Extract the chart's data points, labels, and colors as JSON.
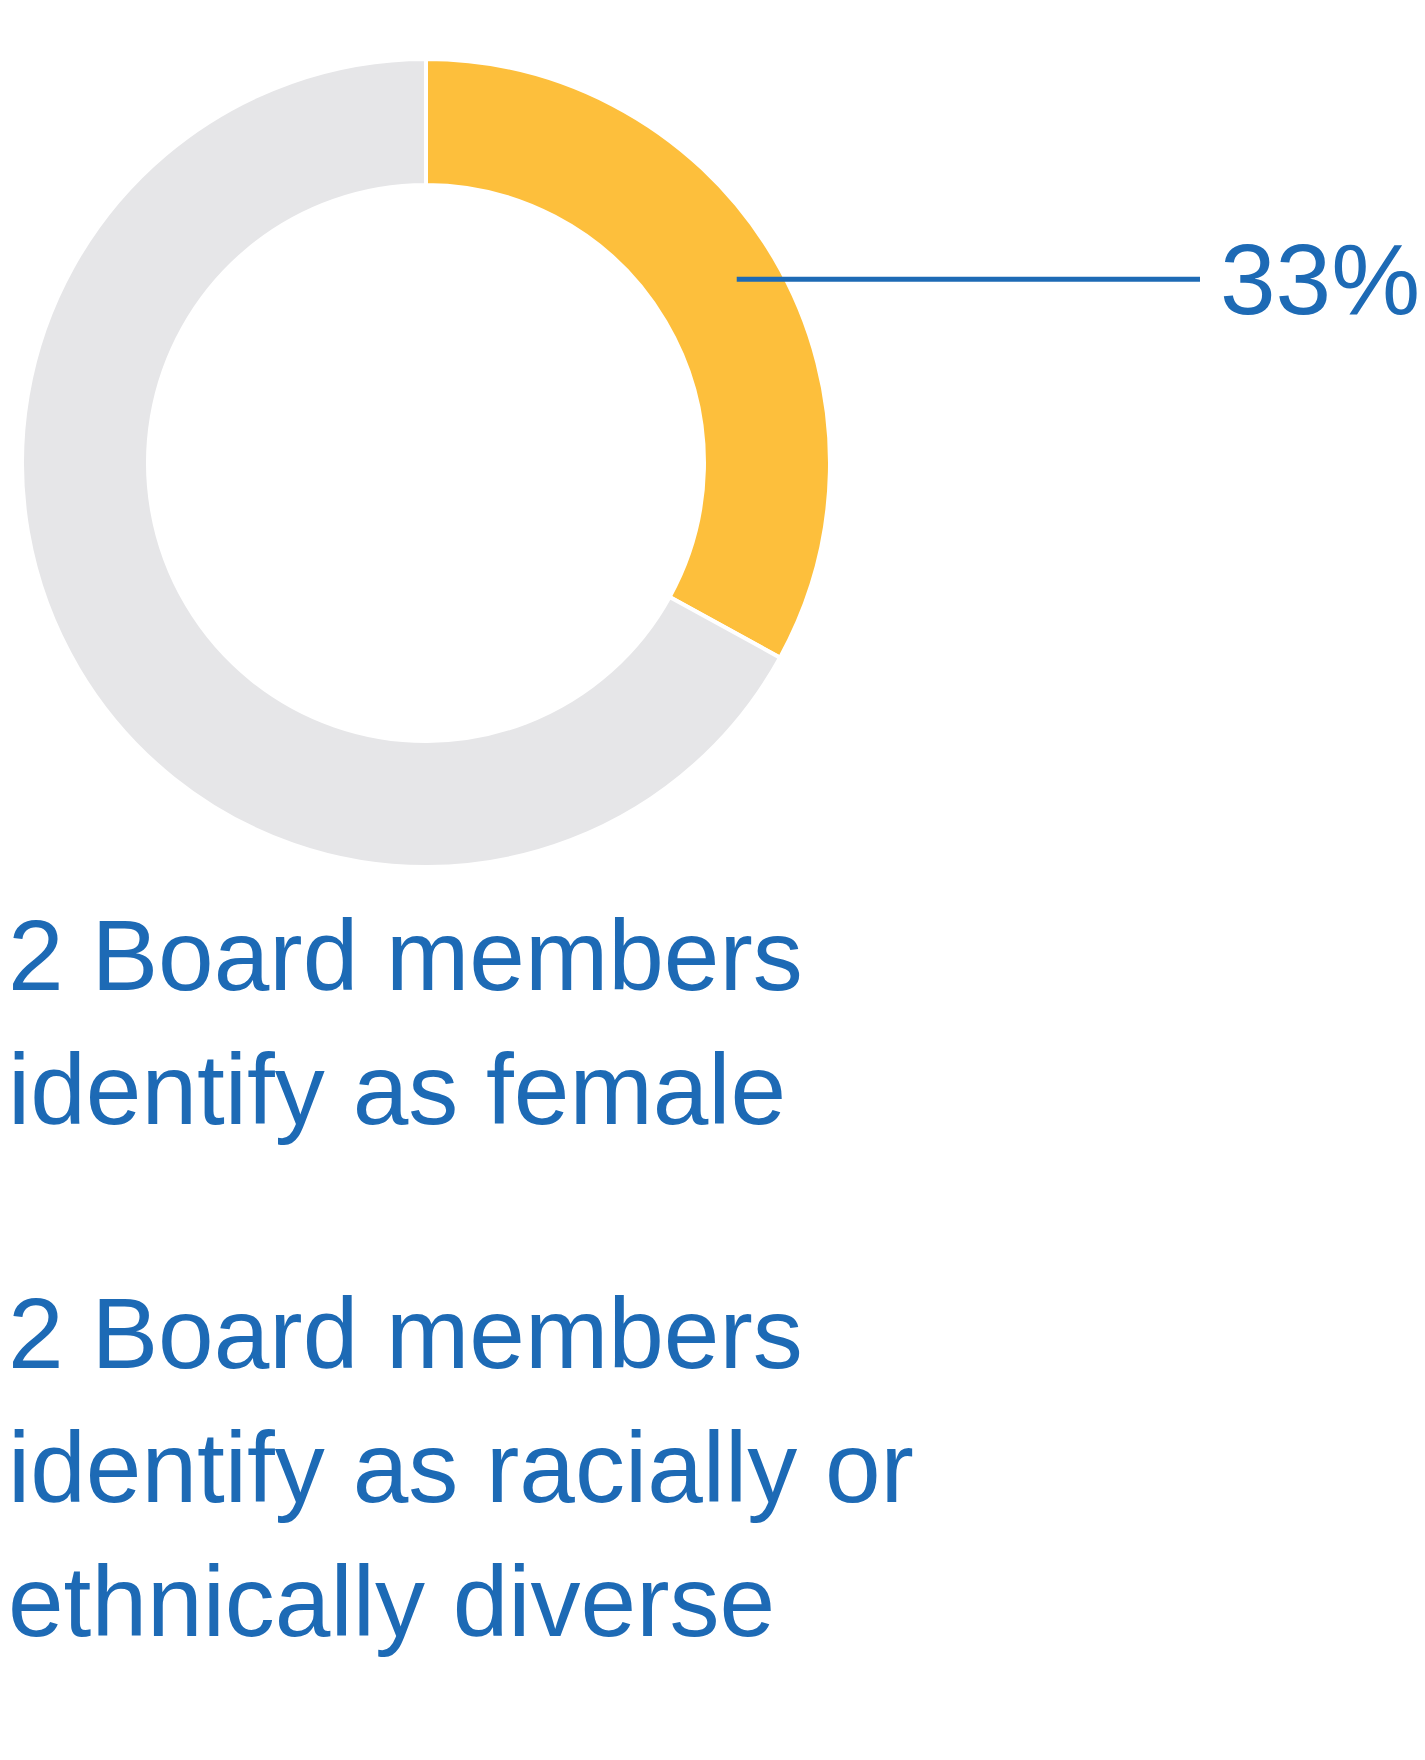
{
  "chart_data": {
    "type": "donut",
    "categories": [
      null,
      null
    ],
    "values": [
      33,
      67
    ],
    "colors": [
      "#fdbf3c",
      "#e6e6e8"
    ],
    "value_labels": [
      "33%",
      null
    ],
    "annotations": [
      "2 Board members identify as female",
      "2 Board members identify as racially or ethnically diverse"
    ]
  }
}
